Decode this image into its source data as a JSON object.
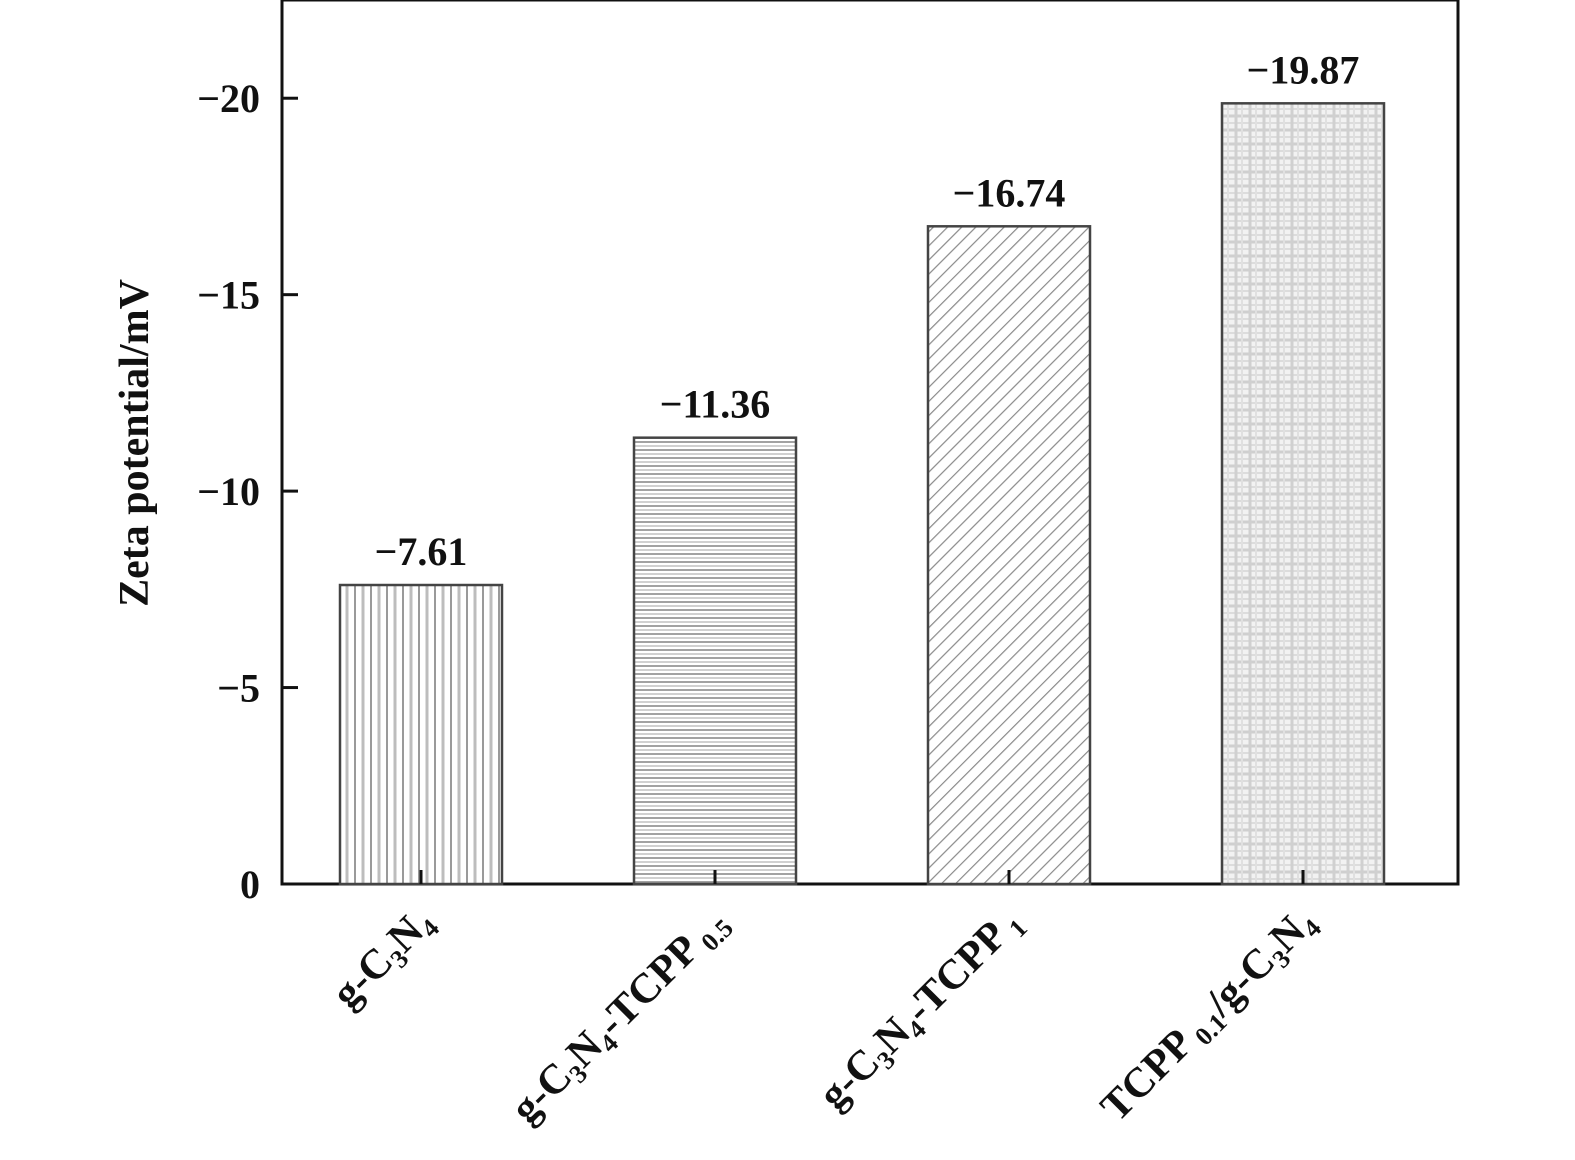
{
  "chart_data": {
    "type": "bar",
    "title": "",
    "xlabel": "",
    "ylabel": "Zeta potential/mV",
    "ylim": [
      0,
      -22.5
    ],
    "yticks": [
      0,
      -5,
      -10,
      -15,
      -20
    ],
    "ytick_labels": [
      "0",
      "−5",
      "−10",
      "−15",
      "−20"
    ],
    "categories": [
      [
        {
          "t": "g-C"
        },
        {
          "t": "3",
          "sub": true
        },
        {
          "t": "N"
        },
        {
          "t": "4",
          "sub": true
        }
      ],
      [
        {
          "t": "g-C"
        },
        {
          "t": "3",
          "sub": true
        },
        {
          "t": "N"
        },
        {
          "t": "4",
          "sub": true
        },
        {
          "t": "-TCPP"
        },
        {
          "t": " 0.5",
          "sub": true
        }
      ],
      [
        {
          "t": "g-C"
        },
        {
          "t": "3",
          "sub": true
        },
        {
          "t": "N"
        },
        {
          "t": "4",
          "sub": true
        },
        {
          "t": "-TCPP"
        },
        {
          "t": " 1",
          "sub": true
        }
      ],
      [
        {
          "t": "TCPP"
        },
        {
          "t": " 0.1",
          "sub": true
        },
        {
          "t": "/g-C"
        },
        {
          "t": "3",
          "sub": true
        },
        {
          "t": "N"
        },
        {
          "t": "4",
          "sub": true
        }
      ]
    ],
    "values": [
      -7.61,
      -11.36,
      -16.74,
      -19.87
    ],
    "data_labels": [
      "−7.61",
      "−11.36",
      "−16.74",
      "−19.87"
    ],
    "patterns": [
      "vertical-lines",
      "horizontal-lines",
      "diagonal-hatch",
      "grid-checker"
    ],
    "grid": false,
    "colors": {
      "axis": "#111111",
      "bar_fill": "#ffffff",
      "pattern": "#888888"
    }
  }
}
